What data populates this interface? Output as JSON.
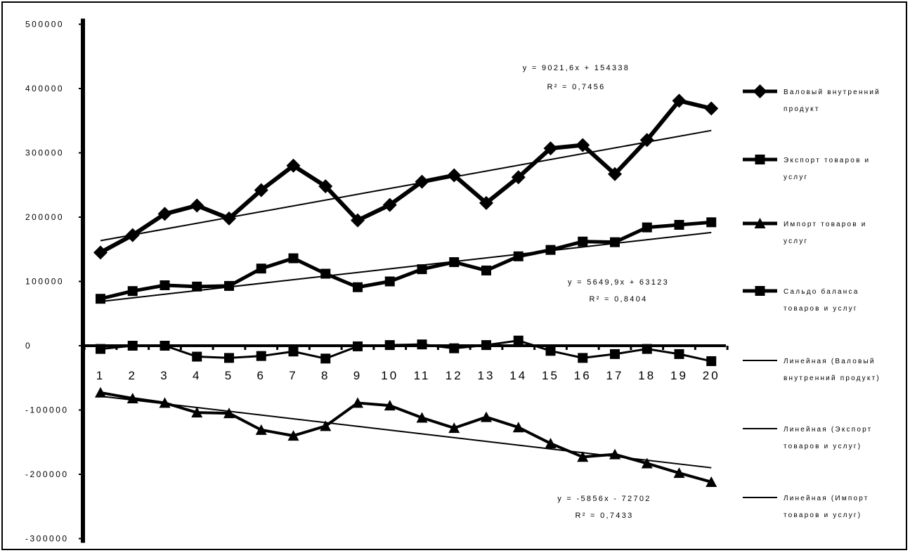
{
  "chart_data": {
    "type": "line",
    "x": [
      1,
      2,
      3,
      4,
      5,
      6,
      7,
      8,
      9,
      10,
      11,
      12,
      13,
      14,
      15,
      16,
      17,
      18,
      19,
      20
    ],
    "ylim": [
      -300000,
      500000
    ],
    "y_ticks": [
      500000,
      400000,
      300000,
      200000,
      100000,
      0,
      -100000,
      -200000,
      -300000
    ],
    "y_tick_labels": [
      "500000",
      "400000",
      "300000",
      "200000",
      "100000",
      "0",
      "-100000",
      "-200000",
      "-300000"
    ],
    "x_tick_labels": [
      "1",
      "2",
      "3",
      "4",
      "5",
      "6",
      "7",
      "8",
      "9",
      "10",
      "11",
      "12",
      "13",
      "14",
      "15",
      "16",
      "17",
      "18",
      "19",
      "20"
    ],
    "grid": false,
    "legend_position": "right",
    "series": [
      {
        "name": "Валовый внутренний продукт",
        "marker": "diamond",
        "values": [
          145000,
          172000,
          205000,
          218000,
          198000,
          242000,
          280000,
          248000,
          195000,
          219000,
          255000,
          265000,
          222000,
          262000,
          307000,
          312000,
          267000,
          320000,
          381000,
          369000
        ]
      },
      {
        "name": "Экспорт товаров и услуг",
        "marker": "square",
        "values": [
          73000,
          85000,
          94000,
          92000,
          93000,
          120000,
          136000,
          112000,
          91000,
          100000,
          119000,
          130000,
          117000,
          139000,
          149000,
          162000,
          161000,
          184000,
          188000,
          192000
        ]
      },
      {
        "name": "Импорт товаров и услуг",
        "marker": "triangle",
        "values": [
          -73000,
          -82000,
          -89000,
          -104000,
          -105000,
          -131000,
          -140000,
          -125000,
          -89000,
          -93000,
          -112000,
          -128000,
          -111000,
          -127000,
          -152000,
          -173000,
          -169000,
          -183000,
          -198000,
          -212000
        ]
      },
      {
        "name": "Сальдо баланса товаров и услуг",
        "marker": "square",
        "values": [
          -5000,
          0,
          0,
          -17000,
          -19000,
          -16000,
          -9000,
          -20000,
          -1000,
          1000,
          2000,
          -4000,
          1000,
          8000,
          -8000,
          -19000,
          -13000,
          -5000,
          -13000,
          -24000
        ]
      }
    ],
    "trendlines": [
      {
        "name": "Линейная (Валовый внутренний продукт)",
        "slope": 9021.6,
        "intercept": 154338,
        "equation": "y = 9021,6x + 154338",
        "r2": "R² = 0,7456"
      },
      {
        "name": "Линейная (Экспорт товаров и услуг)",
        "slope": 5649.9,
        "intercept": 63123,
        "equation": "y = 5649,9x + 63123",
        "r2": "R² = 0,8404"
      },
      {
        "name": "Линейная (Импорт товаров и услуг)",
        "slope": -5856,
        "intercept": -72702,
        "equation": "y = -5856x - 72702",
        "r2": "R² = 0,7433"
      }
    ],
    "legend": [
      {
        "lines": [
          "Валовый внутренний",
          "продукт"
        ],
        "marker": "diamond",
        "thick": true
      },
      {
        "lines": [
          "Экспорт товаров и",
          "услуг"
        ],
        "marker": "square",
        "thick": true
      },
      {
        "lines": [
          "Импорт товаров и",
          "услуг"
        ],
        "marker": "triangle",
        "thick": true
      },
      {
        "lines": [
          "Сальдо баланса",
          "товаров и услуг"
        ],
        "marker": "square",
        "thick": true
      },
      {
        "lines": [
          "Линейная (Валовый",
          "внутренний продукт)"
        ],
        "marker": "none",
        "thick": false
      },
      {
        "lines": [
          "Линейная (Экспорт",
          "товаров и услуг)"
        ],
        "marker": "none",
        "thick": false
      },
      {
        "lines": [
          "Линейная (Импорт",
          "товаров и услуг)"
        ],
        "marker": "none",
        "thick": false
      }
    ],
    "colors": {
      "series": "#000000",
      "background": "#ffffff"
    }
  }
}
